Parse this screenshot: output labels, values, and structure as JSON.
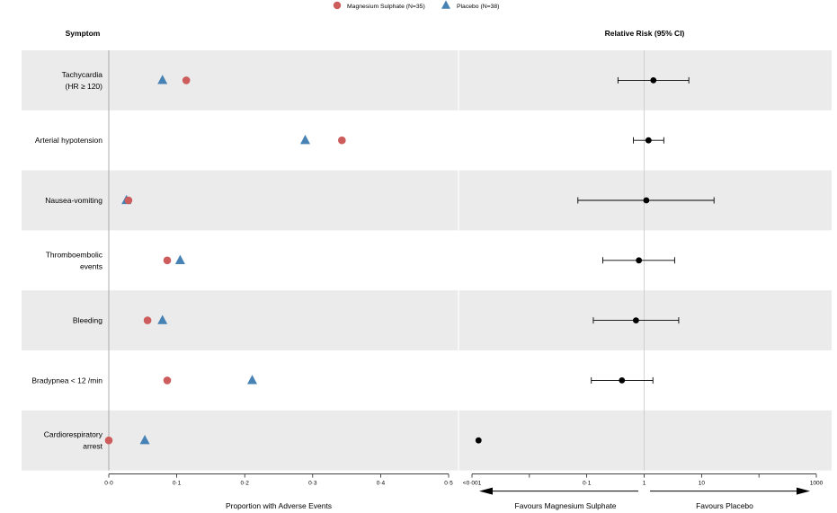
{
  "legend": {
    "placement": "top-center",
    "items": [
      {
        "label": "Magnesium Sulphate (N=35)",
        "shape": "circle",
        "color": "#cd5c5c"
      },
      {
        "label": "Placebo (N=38)",
        "shape": "triangle",
        "color": "#4682b4"
      }
    ]
  },
  "headers": {
    "left": "Symptom",
    "right": "Relative Risk (95% CI)"
  },
  "colors": {
    "stripe": "#ebebeb",
    "divider": "#c8c8c8",
    "point_rr": "#000000"
  },
  "chart_data": [
    {
      "type": "scatter",
      "title": "",
      "xlabel": "Proportion with Adverse Events",
      "xlim": [
        0,
        0.5
      ],
      "grid": false,
      "x_ticks": [
        {
          "value": 0,
          "label": "0·0"
        },
        {
          "value": 0.1,
          "label": "0·1"
        },
        {
          "value": 0.2,
          "label": "0·2"
        },
        {
          "value": 0.3,
          "label": "0·3"
        },
        {
          "value": 0.4,
          "label": "0·4"
        },
        {
          "value": 0.5,
          "label": "0·5"
        }
      ],
      "categories": [
        [
          "Tachycardia",
          "(HR ≥ 120)"
        ],
        [
          "Arterial hypotension"
        ],
        [
          "Nausea-vomiting"
        ],
        [
          "Thromboembolic",
          "events"
        ],
        [
          "Bleeding"
        ],
        [
          "Bradypnea < 12 /min"
        ],
        [
          "Cardiorespiratory",
          "arrest"
        ]
      ],
      "series": [
        {
          "name": "Magnesium Sulphate (N=35)",
          "marker": "circle",
          "color": "#cd5c5c",
          "values": [
            0.114,
            0.343,
            0.029,
            0.086,
            0.057,
            0.086,
            0.0
          ]
        },
        {
          "name": "Placebo (N=38)",
          "marker": "triangle",
          "color": "#4682b4",
          "values": [
            0.079,
            0.289,
            0.026,
            0.105,
            0.079,
            0.211,
            0.053
          ]
        }
      ]
    },
    {
      "type": "scatter",
      "subtype": "forest",
      "title": "Relative Risk (95% CI)",
      "xscale": "log",
      "xlim": [
        0.001,
        1000
      ],
      "reference_line": 1,
      "x_ticks": [
        {
          "value": 0.001,
          "label": "<0·001"
        },
        {
          "value": 0.01,
          "label": ""
        },
        {
          "value": 0.1,
          "label": "0·1"
        },
        {
          "value": 1,
          "label": "1"
        },
        {
          "value": 10,
          "label": "10"
        },
        {
          "value": 100,
          "label": ""
        },
        {
          "value": 1000,
          "label": "1000"
        }
      ],
      "categories": [
        "Tachycardia",
        "Arterial hypotension",
        "Nausea-vomiting",
        "Thromboembolic events",
        "Bleeding",
        "Bradypnea < 12 /min",
        "Cardiorespiratory arrest"
      ],
      "rr": [
        1.45,
        1.19,
        1.09,
        0.81,
        0.72,
        0.41,
        0.0013
      ],
      "lower": [
        0.35,
        0.65,
        0.07,
        0.19,
        0.13,
        0.12,
        null
      ],
      "upper": [
        6.0,
        2.2,
        16.5,
        3.4,
        4.0,
        1.42,
        null
      ],
      "direction_labels": {
        "left": "Favours Magnesium Sulphate",
        "right": "Favours Placebo"
      }
    }
  ]
}
